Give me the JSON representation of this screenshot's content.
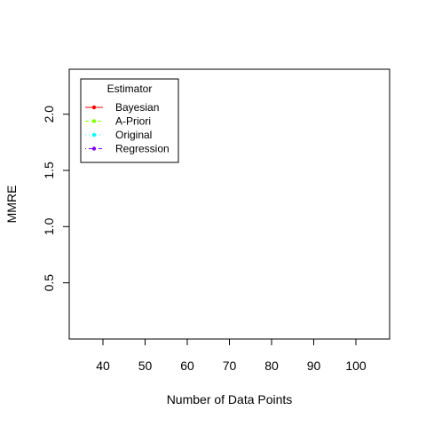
{
  "chart_data": {
    "type": "line",
    "xlabel": "Number of Data Points",
    "ylabel": "MMRE",
    "x_ticks": [
      40,
      50,
      60,
      70,
      80,
      90,
      100
    ],
    "y_ticks": [
      0.5,
      1.0,
      1.5,
      2.0
    ],
    "y_tick_labels": [
      "0.5",
      "1.0",
      "1.5",
      "2.0"
    ],
    "xlim": [
      32,
      108
    ],
    "ylim": [
      0,
      2.4
    ],
    "grid": false,
    "legend": {
      "placement": "top-left",
      "title": "Estimator",
      "entries": [
        {
          "label": "Bayesian",
          "color": "#ff0000",
          "line_style": "solid"
        },
        {
          "label": "A-Priori",
          "color": "#80ff00",
          "line_style": "dashed"
        },
        {
          "label": "Original",
          "color": "#00ffff",
          "line_style": "dotted"
        },
        {
          "label": "Regression",
          "color": "#8000ff",
          "line_style": "dotdash"
        }
      ]
    },
    "series": []
  }
}
